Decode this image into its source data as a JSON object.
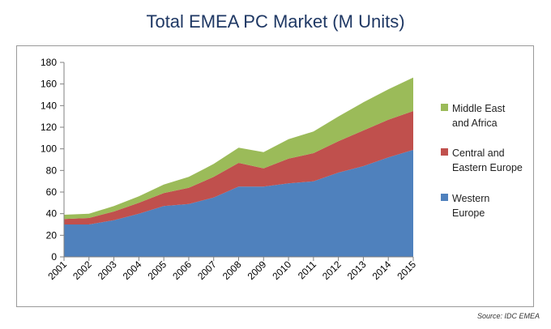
{
  "chart_data": {
    "type": "area",
    "stacked": true,
    "title": "Total EMEA PC Market (M Units)",
    "xlabel": "",
    "ylabel": "",
    "x": [
      "2001",
      "2002",
      "2003",
      "2004",
      "2005",
      "2006",
      "2007",
      "2008",
      "2009",
      "2010",
      "2011",
      "2012",
      "2013",
      "2014",
      "2015"
    ],
    "ylim": [
      0,
      180
    ],
    "yticks": [
      0,
      20,
      40,
      60,
      80,
      100,
      120,
      140,
      160,
      180
    ],
    "grid": false,
    "legend_position": "right",
    "series": [
      {
        "name": "Western Europe",
        "color": "#4F81BD",
        "values": [
          30,
          30,
          34,
          40,
          47,
          49,
          55,
          65,
          65,
          68,
          70,
          78,
          84,
          92,
          99
        ]
      },
      {
        "name": "Central and Eastern Europe",
        "color": "#C0504D",
        "values": [
          5,
          6,
          8,
          10,
          12,
          15,
          19,
          22,
          17,
          23,
          26,
          29,
          33,
          35,
          36
        ]
      },
      {
        "name": "Middle East and Africa",
        "color": "#9BBB59",
        "values": [
          4,
          4,
          5,
          6,
          8,
          10,
          12,
          14,
          15,
          18,
          20,
          23,
          26,
          28,
          31
        ]
      }
    ],
    "legend": [
      {
        "series": 2,
        "lines": [
          "Middle East",
          "and Africa"
        ]
      },
      {
        "series": 1,
        "lines": [
          "Central and",
          "Eastern Europe"
        ]
      },
      {
        "series": 0,
        "lines": [
          "Western",
          "Europe"
        ]
      }
    ]
  },
  "source": "Source: IDC EMEA"
}
